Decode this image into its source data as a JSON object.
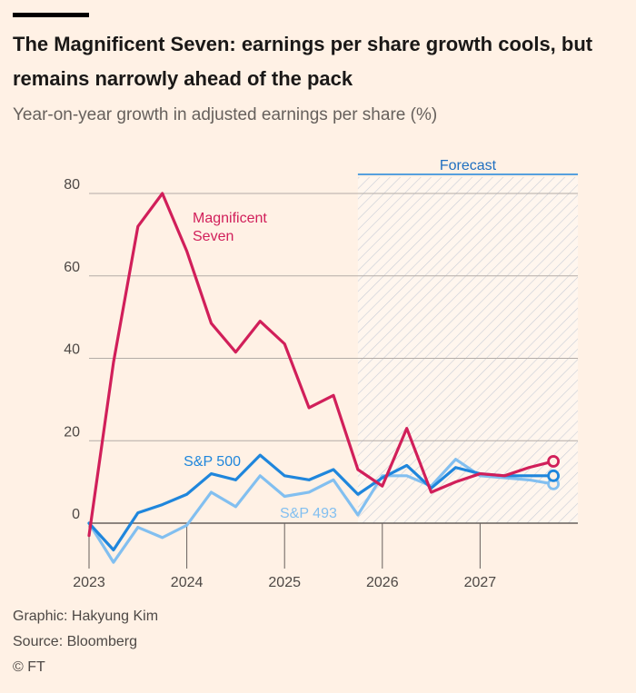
{
  "title": "The Magnificent Seven: earnings per share growth cools, but remains narrowly ahead of the pack",
  "subtitle": "Year-on-year growth in adjusted earnings per share (%)",
  "forecast_label": "Forecast",
  "footer": {
    "graphic": "Graphic: Hakyung Kim",
    "source": "Source: Bloomberg",
    "copyright": "© FT"
  },
  "colors": {
    "magnificent_seven": "#d11f5a",
    "sp500": "#1f86dc",
    "sp493": "#82bff0"
  },
  "chart_data": {
    "type": "line",
    "x": [
      2023.0,
      2023.25,
      2023.5,
      2023.75,
      2024.0,
      2024.25,
      2024.5,
      2024.75,
      2025.0,
      2025.25,
      2025.5,
      2025.75,
      2026.0,
      2026.25,
      2026.5,
      2026.75,
      2027.0,
      2027.25,
      2027.5,
      2027.75,
      2028.0
    ],
    "series": [
      {
        "name": "Magnificent Seven",
        "color": "#d11f5a",
        "values": [
          -3,
          39,
          72,
          80,
          66,
          48.5,
          41.5,
          49,
          43.5,
          28,
          31,
          13,
          9,
          23,
          7.5,
          10,
          12,
          11.5,
          13.5,
          15,
          null
        ]
      },
      {
        "name": "S&P 500",
        "color": "#1f86dc",
        "values": [
          0,
          -6.5,
          2.5,
          4.5,
          7,
          12,
          10.5,
          16.5,
          11.5,
          10.5,
          13,
          7,
          11,
          14,
          8.5,
          13.5,
          12,
          11.5,
          11.5,
          11.5,
          null
        ]
      },
      {
        "name": "S&P 493",
        "color": "#82bff0",
        "values": [
          0,
          -9.5,
          -1,
          -3.5,
          -0.5,
          7.5,
          4,
          11.5,
          6.5,
          7.5,
          10.5,
          2,
          11.5,
          11.5,
          9,
          15.5,
          11.5,
          11,
          10.5,
          9.5,
          null
        ]
      }
    ],
    "forecast_start": 2025.75,
    "endpoint_markers": true,
    "xticks": [
      2023,
      2024,
      2025,
      2026,
      2027
    ],
    "xtick_labels": [
      "2023",
      "2024",
      "2025",
      "2026",
      "2027"
    ],
    "yticks": [
      0,
      20,
      40,
      60,
      80
    ],
    "ytick_labels": [
      "0",
      "20",
      "40",
      "60",
      "80"
    ],
    "ylim": [
      -10,
      85
    ],
    "xlim": [
      2023,
      2028
    ],
    "grid": true,
    "annotations": [
      {
        "series": "Magnificent Seven",
        "lines": [
          "Magnificent",
          "Seven"
        ]
      },
      {
        "series": "S&P 500",
        "lines": [
          "S&P 500"
        ]
      },
      {
        "series": "S&P 493",
        "lines": [
          "S&P 493"
        ]
      }
    ]
  }
}
